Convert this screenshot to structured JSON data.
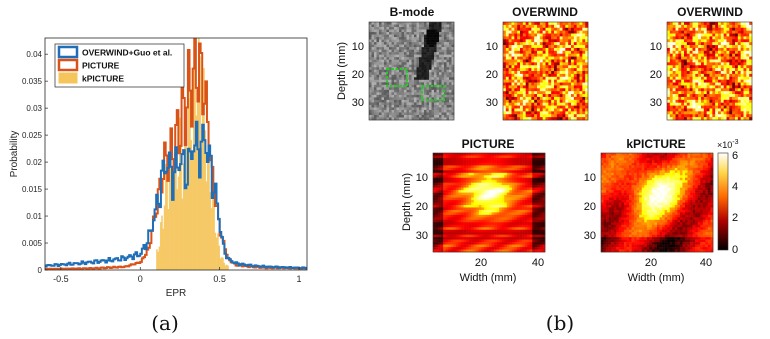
{
  "figure": {
    "captions": {
      "a": "(a)",
      "b": "(b)"
    }
  },
  "chart_data": {
    "type": "line",
    "xlabel": "EPR",
    "ylabel": "Probability",
    "xlim": [
      -0.6,
      1.05
    ],
    "ylim": [
      0,
      0.043
    ],
    "xticks": [
      -0.5,
      0,
      0.5,
      1
    ],
    "xtick_labels": [
      "-0.5",
      "0",
      "0.5",
      "1"
    ],
    "yticks": [
      0,
      0.005,
      0.01,
      0.015,
      0.02,
      0.025,
      0.03,
      0.035,
      0.04
    ],
    "ytick_labels": [
      "0",
      "0.005",
      "0.01",
      "0.015",
      "0.02",
      "0.025",
      "0.03",
      "0.035",
      "0.04"
    ],
    "grid": false,
    "legend_position": "top-left",
    "series": [
      {
        "name": "OVERWIND+Guo et al.",
        "color": "#1f6fb8",
        "x": [
          -0.6,
          -0.5,
          -0.4,
          -0.3,
          -0.2,
          -0.1,
          0.0,
          0.05,
          0.1,
          0.13,
          0.15,
          0.18,
          0.2,
          0.22,
          0.25,
          0.28,
          0.3,
          0.33,
          0.35,
          0.38,
          0.4,
          0.42,
          0.45,
          0.48,
          0.5,
          0.52,
          0.55,
          0.6,
          0.7,
          0.8,
          0.9,
          1.0,
          1.05
        ],
        "values": [
          0.0008,
          0.001,
          0.0012,
          0.0015,
          0.0018,
          0.0022,
          0.003,
          0.006,
          0.012,
          0.016,
          0.02,
          0.019,
          0.017,
          0.019,
          0.021,
          0.018,
          0.019,
          0.024,
          0.023,
          0.022,
          0.025,
          0.022,
          0.017,
          0.012,
          0.008,
          0.004,
          0.002,
          0.0012,
          0.0008,
          0.0006,
          0.0005,
          0.0004,
          0.0004
        ]
      },
      {
        "name": "PICTURE",
        "color": "#d95319",
        "x": [
          -0.6,
          -0.3,
          -0.1,
          0.0,
          0.05,
          0.1,
          0.15,
          0.2,
          0.25,
          0.28,
          0.3,
          0.33,
          0.35,
          0.38,
          0.4,
          0.43,
          0.45,
          0.48,
          0.5,
          0.53,
          0.55,
          0.6,
          0.7,
          0.8,
          0.9,
          1.0,
          1.05
        ],
        "values": [
          0.0002,
          0.0003,
          0.0006,
          0.0015,
          0.004,
          0.012,
          0.02,
          0.022,
          0.027,
          0.03,
          0.033,
          0.035,
          0.038,
          0.036,
          0.033,
          0.024,
          0.017,
          0.011,
          0.007,
          0.004,
          0.002,
          0.0009,
          0.0006,
          0.0004,
          0.0004,
          0.0003,
          0.0003
        ]
      },
      {
        "name": "kPICTURE",
        "color": "#f5c45a",
        "type": "area",
        "x": [
          0.1,
          0.13,
          0.15,
          0.18,
          0.2,
          0.22,
          0.24,
          0.26,
          0.28,
          0.3,
          0.32,
          0.34,
          0.36,
          0.38,
          0.4,
          0.42,
          0.44,
          0.46,
          0.48,
          0.5,
          0.52,
          0.55
        ],
        "values": [
          0.003,
          0.008,
          0.014,
          0.018,
          0.021,
          0.017,
          0.023,
          0.019,
          0.025,
          0.03,
          0.027,
          0.035,
          0.041,
          0.032,
          0.028,
          0.02,
          0.016,
          0.011,
          0.006,
          0.003,
          0.0015,
          0.0006
        ]
      }
    ]
  },
  "maps": {
    "top": [
      {
        "title": "B-mode",
        "ylabel": "Depth (mm)",
        "yticks": [
          "10",
          "20",
          "30"
        ],
        "colormap": "gray"
      },
      {
        "title": "OVERWIND",
        "yticks": [
          "10",
          "20",
          "30"
        ],
        "colormap": "hot"
      },
      {
        "title": "OVERWIND",
        "yticks": [
          "10",
          "20",
          "30"
        ],
        "colormap": "hot"
      }
    ],
    "bottom": [
      {
        "title": "PICTURE",
        "ylabel": "Depth (mm)",
        "xlabel": "Width (mm)",
        "yticks": [
          "10",
          "20",
          "30"
        ],
        "xticks": [
          "20",
          "40"
        ],
        "colormap": "hot"
      },
      {
        "title": "kPICTURE",
        "xlabel": "Width (mm)",
        "yticks": [
          "10",
          "20",
          "30"
        ],
        "xticks": [
          "20",
          "40"
        ],
        "colormap": "hot"
      }
    ],
    "colorbar": {
      "exponent": "×10",
      "exponent_power": "-3",
      "ticks": [
        "6",
        "4",
        "2",
        "0"
      ],
      "range": [
        0,
        6
      ]
    },
    "roi_color": "#22cc22"
  }
}
